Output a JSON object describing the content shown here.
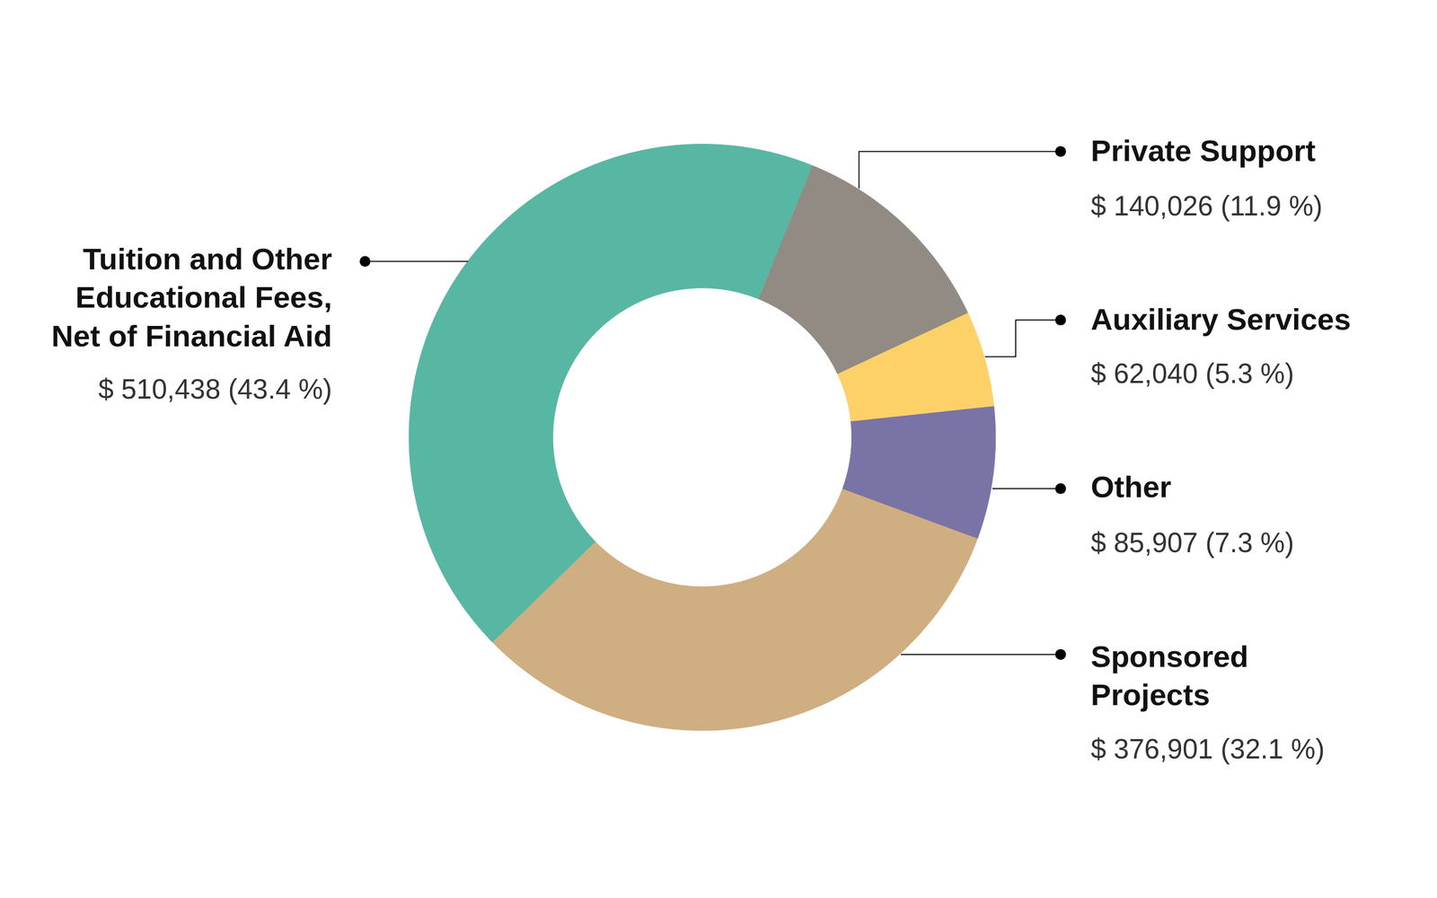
{
  "chart_data": {
    "type": "donut",
    "categories": [
      "Private Support",
      "Auxiliary Services",
      "Other",
      "Sponsored\nProjects",
      "Tuition and Other\nEducational Fees,\nNet of Financial Aid"
    ],
    "values": [
      140026,
      62040,
      85907,
      376901,
      510438
    ],
    "value_labels": [
      "$ 140,026 (11.9 %)",
      "$ 62,040 (5.3 %)",
      "$ 85,907 (7.3 %)",
      "$ 376,901 (32.1 %)",
      "$ 510,438 (43.4 %)"
    ],
    "colors": [
      "#918b84",
      "#fdd168",
      "#7a73a6",
      "#cfae82",
      "#57b7a2"
    ],
    "data_labels": true
  }
}
